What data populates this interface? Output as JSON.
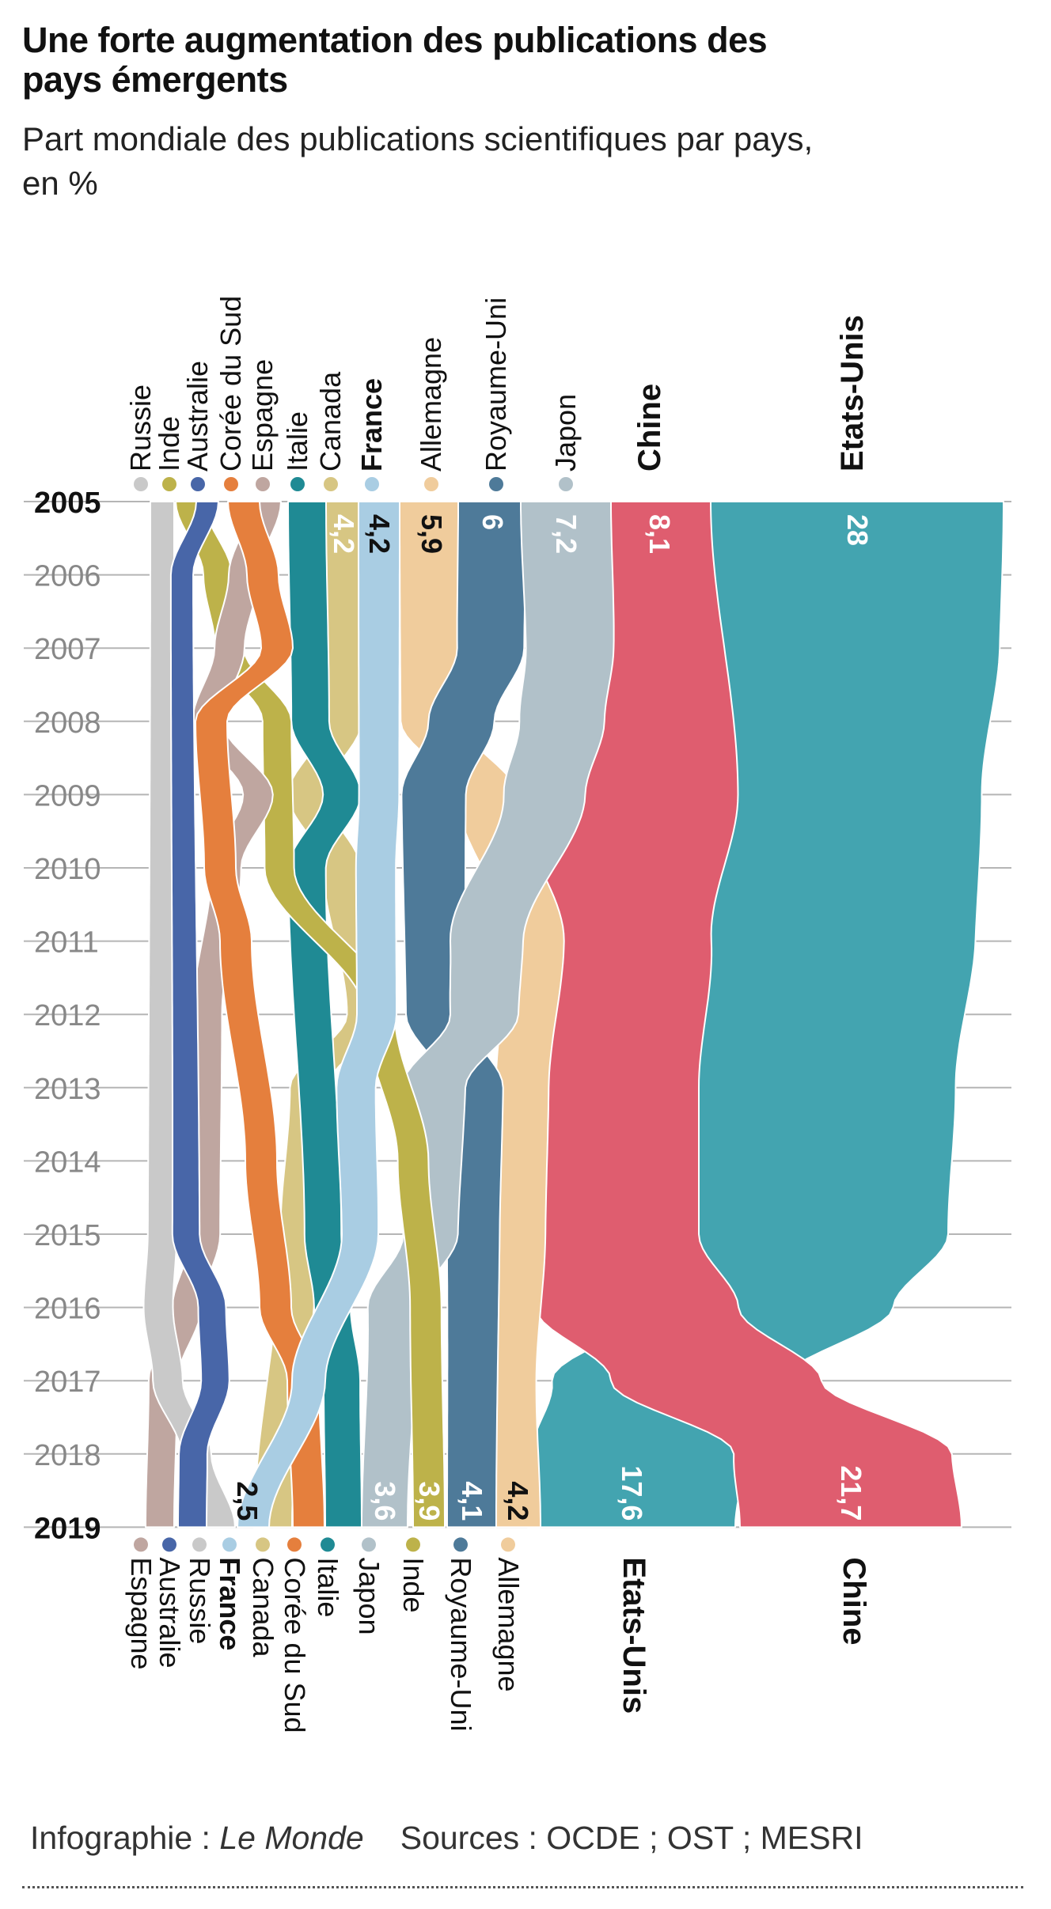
{
  "header": {
    "title": "Une forte augmentation des publications des pays émergents",
    "subtitle": "Part mondiale des publications scientifiques par pays, en %"
  },
  "footer": {
    "credit_label": "Infographie :",
    "credit_name": "Le Monde",
    "sources": "Sources : OCDE ; OST ; MESRI"
  },
  "chart_data": {
    "type": "area",
    "years": [
      "2005",
      "2006",
      "2007",
      "2008",
      "2009",
      "2010",
      "2011",
      "2012",
      "2013",
      "2014",
      "2015",
      "2016",
      "2017",
      "2018",
      "2019"
    ],
    "countries": [
      {
        "key": "russie",
        "name": "Russie",
        "color": "#c9c9c9",
        "bold": false
      },
      {
        "key": "inde",
        "name": "Inde",
        "color": "#bdb24a",
        "bold": false
      },
      {
        "key": "australie",
        "name": "Australie",
        "color": "#4866a8",
        "bold": false
      },
      {
        "key": "coree",
        "name": "Corée du Sud",
        "color": "#e57f3d",
        "bold": false
      },
      {
        "key": "espagne",
        "name": "Espagne",
        "color": "#bfa6a0",
        "bold": false
      },
      {
        "key": "italie",
        "name": "Italie",
        "color": "#1f8a94",
        "bold": false
      },
      {
        "key": "canada",
        "name": "Canada",
        "color": "#d7c683",
        "bold": false
      },
      {
        "key": "france",
        "name": "France",
        "color": "#a9cde3",
        "bold": true
      },
      {
        "key": "allemagne",
        "name": "Allemagne",
        "color": "#f0cc9c",
        "bold": false
      },
      {
        "key": "royaumeuni",
        "name": "Royaume-Uni",
        "color": "#4e7a99",
        "bold": false
      },
      {
        "key": "japon",
        "name": "Japon",
        "color": "#b1c1c9",
        "bold": false
      },
      {
        "key": "chine",
        "name": "Chine",
        "color": "#df5d6f",
        "bold": true
      },
      {
        "key": "etatsunis",
        "name": "Etats-Unis",
        "color": "#43a4b0",
        "bold": true
      }
    ],
    "order_2005": [
      "russie",
      "inde",
      "australie",
      "coree",
      "espagne",
      "italie",
      "canada",
      "france",
      "allemagne",
      "royaumeuni",
      "japon",
      "chine",
      "etatsunis"
    ],
    "order_2019": [
      "espagne",
      "australie",
      "russie",
      "france",
      "canada",
      "coree",
      "italie",
      "japon",
      "inde",
      "royaumeuni",
      "allemagne",
      "etatsunis",
      "chine"
    ],
    "values_2005": {
      "canada": "4,2",
      "france": "4,2",
      "allemagne": "5,9",
      "royaumeuni": "6",
      "japon": "7,2",
      "chine": "8,1",
      "etatsunis": "28"
    },
    "values_2019": {
      "france": "2,5",
      "japon": "3,6",
      "inde": "3,9",
      "royaumeuni": "4,1",
      "allemagne": "4,2",
      "etatsunis": "17,6",
      "chine": "21,7"
    }
  }
}
